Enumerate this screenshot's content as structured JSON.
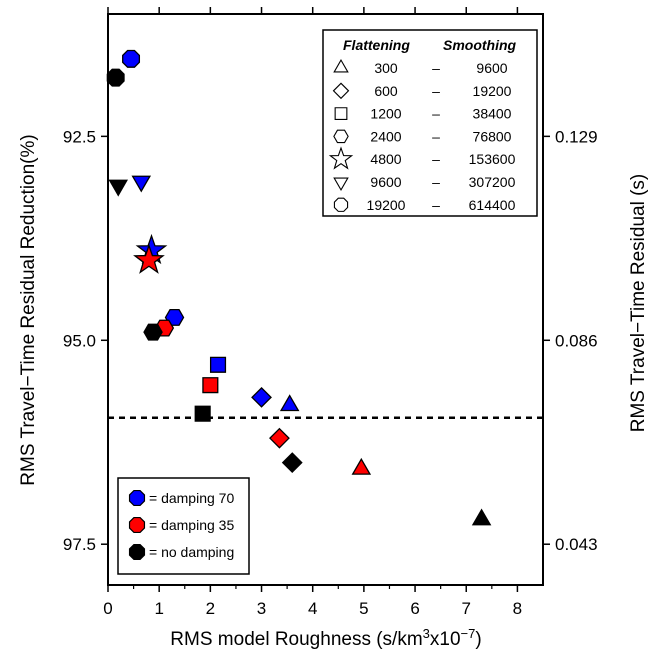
{
  "chart_data": {
    "type": "scatter",
    "xlabel_main": "RMS model Roughness (s/km",
    "xlabel_sup1": "3",
    "xlabel_mid": "x10",
    "xlabel_sup2": "−7",
    "xlabel_end": ")",
    "ylabel_left": "RMS Travel−Time Residual Reduction(%)",
    "ylabel_right": "RMS Travel−Time Residual (s)",
    "xlim": [
      0,
      8.5
    ],
    "ylim_left": [
      91.0,
      98.0
    ],
    "y_inverted": true,
    "x_ticks": [
      "0",
      "1",
      "2",
      "3",
      "4",
      "5",
      "6",
      "7",
      "8"
    ],
    "y_left_ticks": [
      {
        "value": 92.5,
        "label": "92.5"
      },
      {
        "value": 95.0,
        "label": "95.0"
      },
      {
        "value": 97.5,
        "label": "97.5"
      }
    ],
    "y_right_ticks": [
      {
        "at_left_value": 92.5,
        "label": "0.129"
      },
      {
        "at_left_value": 95.0,
        "label": "0.086"
      },
      {
        "at_left_value": 97.5,
        "label": "0.043"
      }
    ],
    "reference_line": {
      "y": 95.95,
      "style": "dashed"
    },
    "series": [
      {
        "name": "damping 70",
        "color": "#0000ff",
        "points": [
          {
            "x": 3.55,
            "y": 95.8,
            "marker": "triangle-up"
          },
          {
            "x": 3.0,
            "y": 95.7,
            "marker": "diamond"
          },
          {
            "x": 2.15,
            "y": 95.3,
            "marker": "square"
          },
          {
            "x": 1.3,
            "y": 94.72,
            "marker": "hexagon"
          },
          {
            "x": 0.85,
            "y": 93.9,
            "marker": "star"
          },
          {
            "x": 0.65,
            "y": 93.05,
            "marker": "triangle-down"
          },
          {
            "x": 0.45,
            "y": 91.55,
            "marker": "octagon"
          }
        ]
      },
      {
        "name": "damping 35",
        "color": "#ff0000",
        "points": [
          {
            "x": 4.95,
            "y": 96.58,
            "marker": "triangle-up"
          },
          {
            "x": 3.35,
            "y": 96.2,
            "marker": "diamond"
          },
          {
            "x": 2.0,
            "y": 95.55,
            "marker": "square"
          },
          {
            "x": 1.1,
            "y": 94.85,
            "marker": "hexagon"
          },
          {
            "x": 0.8,
            "y": 94.02,
            "marker": "star"
          }
        ]
      },
      {
        "name": "no damping",
        "color": "#000000",
        "points": [
          {
            "x": 7.3,
            "y": 97.2,
            "marker": "triangle-up"
          },
          {
            "x": 3.6,
            "y": 96.5,
            "marker": "diamond"
          },
          {
            "x": 1.85,
            "y": 95.9,
            "marker": "square"
          },
          {
            "x": 0.88,
            "y": 94.9,
            "marker": "hexagon"
          },
          {
            "x": 0.2,
            "y": 93.1,
            "marker": "triangle-down"
          },
          {
            "x": 0.15,
            "y": 91.78,
            "marker": "octagon"
          }
        ]
      }
    ],
    "marker_legend": {
      "header_flattening": "Flattening",
      "header_smoothing": "Smoothing",
      "rows": [
        {
          "marker": "triangle-up",
          "flattening": "300",
          "dash": "–",
          "smoothing": "9600"
        },
        {
          "marker": "diamond",
          "flattening": "600",
          "dash": "–",
          "smoothing": "19200"
        },
        {
          "marker": "square",
          "flattening": "1200",
          "dash": "–",
          "smoothing": "38400"
        },
        {
          "marker": "hexagon",
          "flattening": "2400",
          "dash": "–",
          "smoothing": "76800"
        },
        {
          "marker": "star",
          "flattening": "4800",
          "dash": "–",
          "smoothing": "153600"
        },
        {
          "marker": "triangle-down",
          "flattening": "9600",
          "dash": "–",
          "smoothing": "307200"
        },
        {
          "marker": "octagon",
          "flattening": "19200",
          "dash": "–",
          "smoothing": "614400"
        }
      ]
    },
    "color_legend": [
      {
        "color": "#0000ff",
        "label": "= damping 70"
      },
      {
        "color": "#ff0000",
        "label": "= damping 35"
      },
      {
        "color": "#000000",
        "label": "= no damping"
      }
    ]
  }
}
